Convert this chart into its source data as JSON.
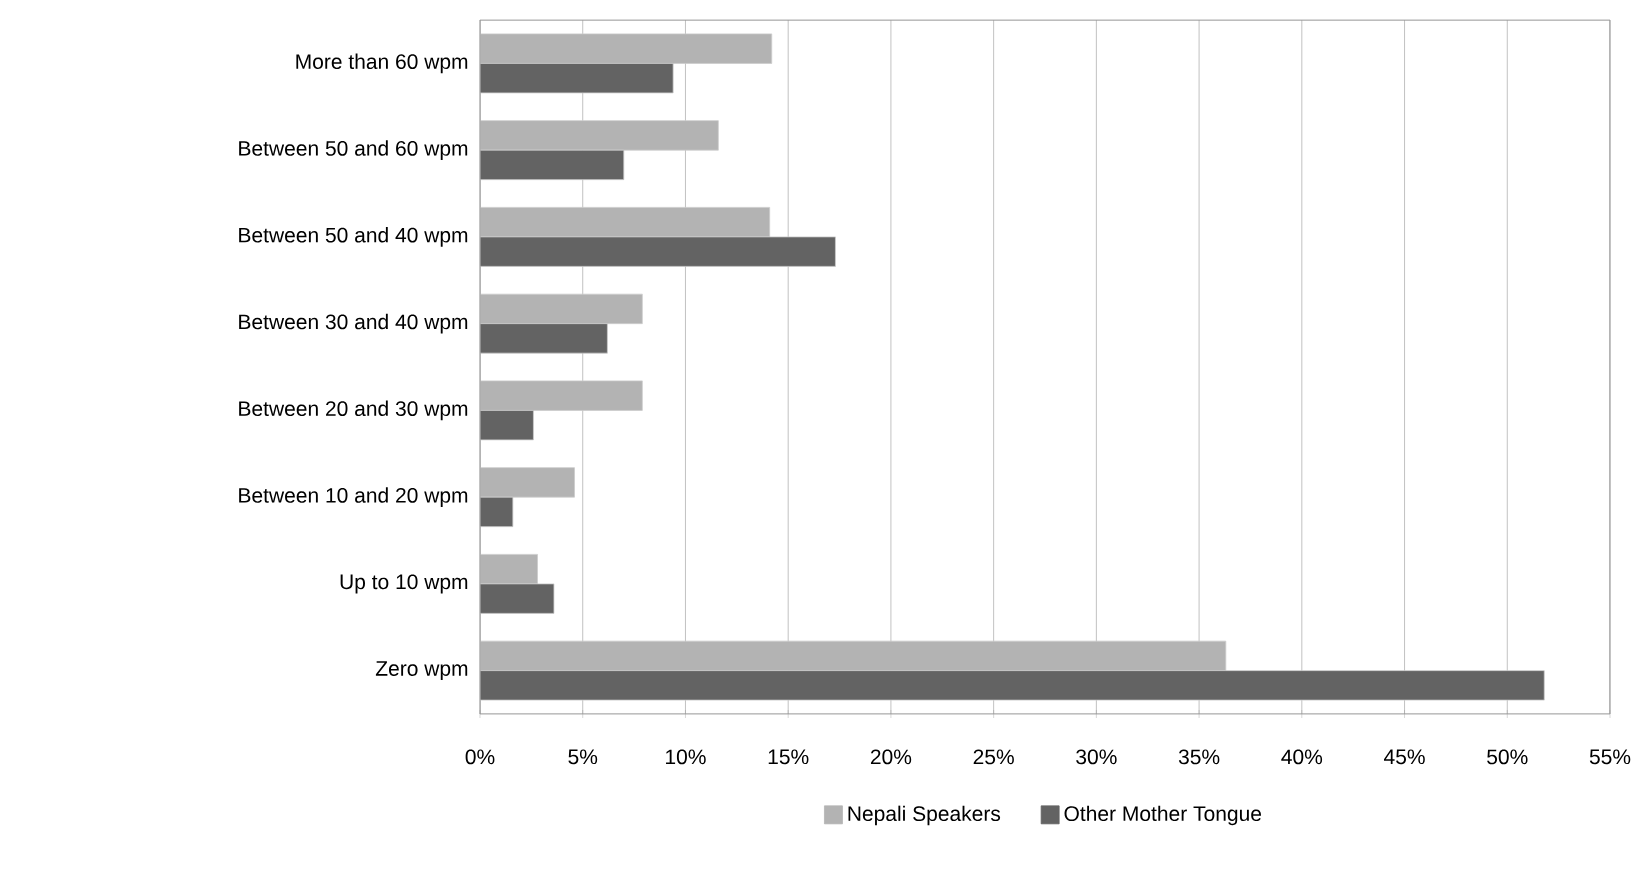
{
  "chart_data": {
    "type": "bar",
    "orientation": "horizontal",
    "categories": [
      "More than 60 wpm",
      "Between 50 and 60 wpm",
      "Between 50 and 40 wpm",
      "Between 30 and 40 wpm",
      "Between 20 and 30 wpm",
      "Between 10 and 20 wpm",
      "Up to 10 wpm",
      "Zero wpm"
    ],
    "series": [
      {
        "name": "Nepali Speakers",
        "color": "#b3b3b3",
        "values": [
          14.2,
          11.6,
          14.1,
          7.9,
          7.9,
          4.6,
          2.8,
          36.3
        ]
      },
      {
        "name": "Other Mother Tongue",
        "color": "#636363",
        "values": [
          9.4,
          7.0,
          17.3,
          6.2,
          2.6,
          1.6,
          3.6,
          51.8
        ]
      }
    ],
    "xlim": [
      0,
      55
    ],
    "xticks": [
      {
        "value": 0,
        "label": "0%"
      },
      {
        "value": 5,
        "label": "5%"
      },
      {
        "value": 10,
        "label": "10%"
      },
      {
        "value": 15,
        "label": "15%"
      },
      {
        "value": 20,
        "label": "20%"
      },
      {
        "value": 25,
        "label": "25%"
      },
      {
        "value": 30,
        "label": "30%"
      },
      {
        "value": 35,
        "label": "35%"
      },
      {
        "value": 40,
        "label": "40%"
      },
      {
        "value": 45,
        "label": "45%"
      },
      {
        "value": 50,
        "label": "50%"
      },
      {
        "value": 55,
        "label": "55%"
      }
    ],
    "grid": "x",
    "legend": "bottom"
  }
}
